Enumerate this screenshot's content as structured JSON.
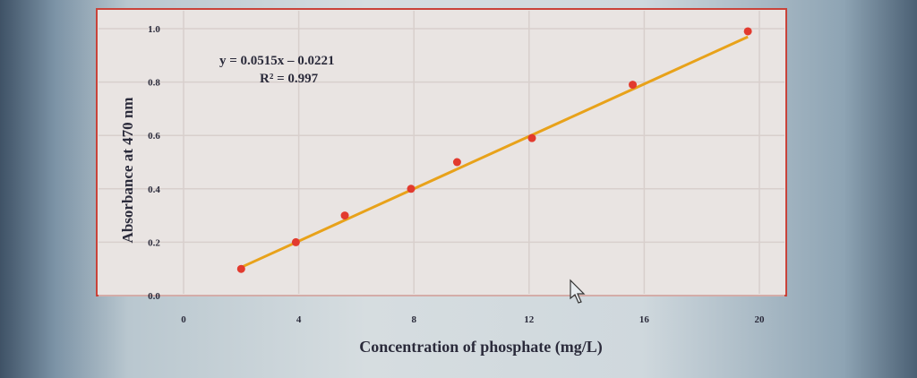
{
  "chart_data": {
    "type": "scatter",
    "title": "",
    "xlabel": "Concentration of phosphate (mg/L)",
    "ylabel": "Absorbance at 470 nm",
    "xlim": [
      0,
      20
    ],
    "ylim": [
      0.0,
      1.0
    ],
    "x_ticks": [
      "0",
      "4",
      "8",
      "12",
      "16",
      "20"
    ],
    "y_ticks": [
      "0.0",
      "0.2",
      "0.4",
      "0.6",
      "0.8",
      "1.0"
    ],
    "grid": true,
    "series": [
      {
        "points": [
          {
            "x": 2.0,
            "y": 0.1
          },
          {
            "x": 3.9,
            "y": 0.2
          },
          {
            "x": 5.6,
            "y": 0.3
          },
          {
            "x": 7.9,
            "y": 0.4
          },
          {
            "x": 9.5,
            "y": 0.5
          },
          {
            "x": 12.1,
            "y": 0.59
          },
          {
            "x": 15.6,
            "y": 0.79
          },
          {
            "x": 19.6,
            "y": 0.99
          }
        ],
        "color": "#e23a2e"
      }
    ],
    "trendline": {
      "slope": 0.0515,
      "intercept": -0.0221,
      "x_range": [
        2.0,
        19.6
      ],
      "color": "#e8a21a",
      "equation": "y = 0.0515x – 0.0221",
      "r_squared": "R² = 0.997"
    }
  }
}
